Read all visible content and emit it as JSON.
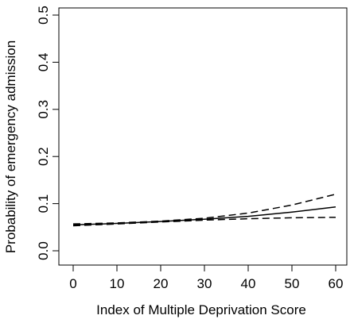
{
  "chart_data": {
    "type": "line",
    "title": "",
    "xlabel": "Index of Multiple Deprivation Score",
    "ylabel": "Probability of emergency admission",
    "xlim": [
      0,
      60
    ],
    "ylim": [
      0,
      0.5
    ],
    "x_ticks": [
      0,
      10,
      20,
      30,
      40,
      50,
      60
    ],
    "y_ticks": [
      0.0,
      0.1,
      0.2,
      0.3,
      0.4,
      0.5
    ],
    "x_tick_labels": [
      "0",
      "10",
      "20",
      "30",
      "40",
      "50",
      "60"
    ],
    "y_tick_labels": [
      "0.0",
      "0.1",
      "0.2",
      "0.3",
      "0.4",
      "0.5"
    ],
    "grid": false,
    "legend": "none",
    "series": [
      {
        "style": "solid",
        "x": [
          0,
          10,
          20,
          30,
          40,
          50,
          60
        ],
        "values": [
          0.055,
          0.058,
          0.062,
          0.067,
          0.073,
          0.082,
          0.093
        ]
      },
      {
        "style": "dashed",
        "x": [
          0,
          10,
          20,
          30,
          40,
          50,
          60
        ],
        "values": [
          0.057,
          0.059,
          0.063,
          0.069,
          0.08,
          0.097,
          0.12
        ]
      },
      {
        "style": "dashed",
        "x": [
          0,
          10,
          20,
          30,
          40,
          50,
          60
        ],
        "values": [
          0.053,
          0.057,
          0.061,
          0.065,
          0.068,
          0.07,
          0.071
        ]
      }
    ]
  }
}
